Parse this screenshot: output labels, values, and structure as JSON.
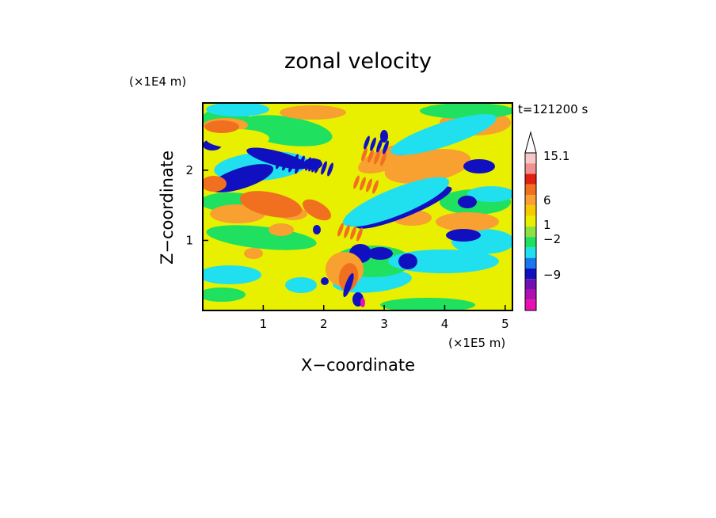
{
  "chart_data": {
    "type": "heatmap",
    "title": "zonal velocity",
    "xlabel": "X−coordinate",
    "ylabel": "Z−coordinate",
    "x_scale_note": "(×1E5 m)",
    "y_scale_note": "(×1E4 m)",
    "time_label": "t=121200 s",
    "xlim": [
      0,
      5.12
    ],
    "ylim": [
      0,
      2.96
    ],
    "x_ticks": [
      1,
      2,
      3,
      4,
      5
    ],
    "y_ticks": [
      1,
      2
    ],
    "x_tick_labels": [
      "1",
      "2",
      "3",
      "4",
      "5"
    ],
    "y_tick_labels": [
      "1",
      "2"
    ],
    "colorbar": {
      "levels_top_to_bottom": [
        {
          "color": "#f8c8c8"
        },
        {
          "color": "#f09090"
        },
        {
          "color": "#e02010"
        },
        {
          "color": "#f07020"
        },
        {
          "color": "#f8a030"
        },
        {
          "color": "#f8c800"
        },
        {
          "color": "#e8f000"
        },
        {
          "color": "#90e040"
        },
        {
          "color": "#20e060"
        },
        {
          "color": "#20e0f0"
        },
        {
          "color": "#1878f0"
        },
        {
          "color": "#1010c0"
        },
        {
          "color": "#7010b0"
        },
        {
          "color": "#b010b0"
        },
        {
          "color": "#e810b0"
        }
      ],
      "tick_labels": [
        "15.1",
        "6",
        "1",
        "−2",
        "−9"
      ],
      "extend_top": true
    },
    "palette": {
      "neg_large": "#e810b0",
      "neg_mid": "#1010c0",
      "neg_small": "#20e0f0",
      "zero": "#20e060",
      "pos_small": "#e8f000",
      "pos_mid": "#f8a030",
      "pos_large": "#f07020"
    }
  }
}
